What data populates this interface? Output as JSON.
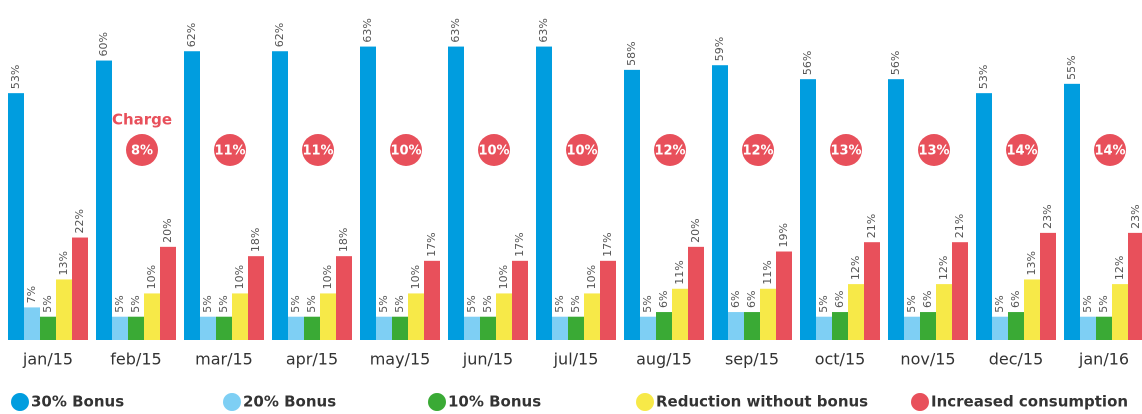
{
  "chart_data": {
    "type": "bar",
    "categories": [
      "jan/15",
      "feb/15",
      "mar/15",
      "apr/15",
      "may/15",
      "jun/15",
      "jul/15",
      "aug/15",
      "sep/15",
      "oct/15",
      "nov/15",
      "dec/15",
      "jan/16"
    ],
    "ylim": [
      0,
      73
    ],
    "legend": "bottom",
    "series": [
      {
        "name": "30% Bonus",
        "color": "#009ddf",
        "values": [
          53,
          60,
          62,
          62,
          63,
          63,
          63,
          58,
          59,
          56,
          56,
          53,
          55
        ],
        "value_labels": [
          "53%",
          "60%",
          "62%",
          "62%",
          "63%",
          "63%",
          "63%",
          "58%",
          "59%",
          "56%",
          "56%",
          "53%",
          "55%"
        ]
      },
      {
        "name": "20% Bonus",
        "color": "#7ecff4",
        "values": [
          7,
          5,
          5,
          5,
          5,
          5,
          5,
          5,
          6,
          5,
          5,
          5,
          5
        ],
        "value_labels": [
          "7%",
          "5%",
          "5%",
          "5%",
          "5%",
          "5%",
          "5%",
          "5%",
          "6%",
          "5%",
          "5%",
          "5%",
          "5%"
        ]
      },
      {
        "name": "10% Bonus",
        "color": "#3aaa35",
        "values": [
          5,
          5,
          5,
          5,
          5,
          5,
          5,
          6,
          6,
          6,
          6,
          6,
          5
        ],
        "value_labels": [
          "5%",
          "5%",
          "5%",
          "5%",
          "5%",
          "5%",
          "5%",
          "6%",
          "6%",
          "6%",
          "6%",
          "6%",
          "5%"
        ]
      },
      {
        "name": "Reduction without bonus",
        "color": "#f7e948",
        "values": [
          13,
          10,
          10,
          10,
          10,
          10,
          10,
          11,
          11,
          12,
          12,
          13,
          12
        ],
        "value_labels": [
          "13%",
          "10%",
          "10%",
          "10%",
          "10%",
          "10%",
          "10%",
          "11%",
          "11%",
          "12%",
          "12%",
          "13%",
          "12%"
        ]
      },
      {
        "name": "Increased consumption",
        "color": "#e8505b",
        "values": [
          22,
          20,
          18,
          18,
          17,
          17,
          17,
          20,
          19,
          21,
          21,
          23,
          23
        ],
        "value_labels": [
          "22%",
          "20%",
          "18%",
          "18%",
          "17%",
          "17%",
          "17%",
          "20%",
          "19%",
          "21%",
          "21%",
          "23%",
          "23%"
        ]
      }
    ],
    "charge": {
      "label": "Charge",
      "color": "#e8505b",
      "values": [
        null,
        8,
        11,
        11,
        10,
        10,
        10,
        12,
        12,
        13,
        13,
        14,
        14
      ],
      "value_labels": [
        null,
        "8%",
        "11%",
        "11%",
        "10%",
        "10%",
        "10%",
        "12%",
        "12%",
        "13%",
        "13%",
        "14%",
        "14%"
      ]
    }
  }
}
